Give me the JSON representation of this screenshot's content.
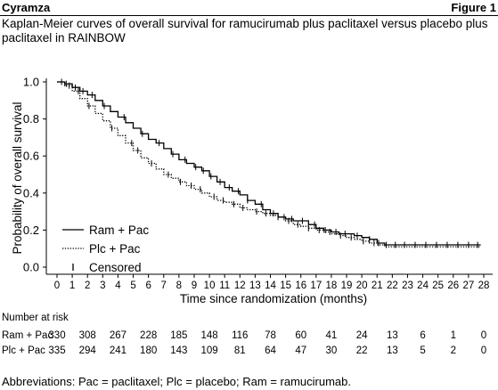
{
  "header": {
    "drug": "Cyramza",
    "figure": "Figure 1",
    "title": "Kaplan-Meier curves of overall survival for ramucirumab plus paclitaxel versus placebo plus paclitaxel in RAINBOW"
  },
  "chart_data": {
    "type": "line",
    "xlabel": "Time since randomization (months)",
    "ylabel": "Probability of overall survival",
    "xlim": [
      0,
      28
    ],
    "ylim": [
      0,
      1.0
    ],
    "x_ticks": [
      0,
      1,
      2,
      3,
      4,
      5,
      6,
      7,
      8,
      9,
      10,
      11,
      12,
      13,
      14,
      15,
      16,
      17,
      18,
      19,
      20,
      21,
      22,
      23,
      24,
      25,
      26,
      27,
      28
    ],
    "y_ticks": [
      "0.0",
      "0.2",
      "0.4",
      "0.6",
      "0.8",
      "1.0"
    ],
    "legend": [
      {
        "label": "Ram + Pac",
        "style": "solid"
      },
      {
        "label": "Plc + Pac",
        "style": "dotted"
      },
      {
        "label": "Censored",
        "style": "tick"
      }
    ],
    "legend_position": "bottom-left",
    "series": [
      {
        "name": "Ram + Pac",
        "style": "solid",
        "x": [
          0,
          0.5,
          1,
          1.5,
          2,
          2.5,
          3,
          3.5,
          4,
          4.5,
          5,
          5.5,
          6,
          6.5,
          7,
          7.5,
          8,
          8.5,
          9,
          9.5,
          10,
          10.5,
          11,
          11.5,
          12,
          12.5,
          13,
          13.5,
          14,
          14.5,
          15,
          15.5,
          16,
          16.5,
          17,
          17.5,
          18,
          18.5,
          19,
          19.5,
          20,
          20.5,
          21,
          21.5,
          22,
          23,
          24,
          25,
          26,
          27,
          27.3,
          27.8
        ],
        "y": [
          1.0,
          0.99,
          0.97,
          0.95,
          0.93,
          0.9,
          0.87,
          0.84,
          0.81,
          0.78,
          0.75,
          0.72,
          0.69,
          0.67,
          0.64,
          0.61,
          0.58,
          0.56,
          0.54,
          0.52,
          0.49,
          0.46,
          0.43,
          0.41,
          0.39,
          0.36,
          0.34,
          0.31,
          0.29,
          0.27,
          0.26,
          0.25,
          0.25,
          0.23,
          0.21,
          0.2,
          0.19,
          0.18,
          0.18,
          0.17,
          0.16,
          0.15,
          0.13,
          0.12,
          0.12,
          0.12,
          0.12,
          0.12,
          0.12,
          0.12,
          0.12,
          0.12
        ]
      },
      {
        "name": "Plc + Pac",
        "style": "dotted",
        "x": [
          0,
          0.5,
          1,
          1.5,
          2,
          2.5,
          3,
          3.5,
          4,
          4.5,
          5,
          5.5,
          6,
          6.5,
          7,
          7.5,
          8,
          8.5,
          9,
          9.5,
          10,
          10.5,
          11,
          11.5,
          12,
          12.5,
          13,
          13.5,
          14,
          14.5,
          15,
          15.5,
          16,
          16.5,
          17,
          17.5,
          18,
          18.5,
          19,
          19.5,
          20,
          20.5,
          21,
          21.5,
          22,
          23,
          24,
          25,
          26,
          27,
          27.8
        ],
        "y": [
          1.0,
          0.98,
          0.95,
          0.91,
          0.87,
          0.83,
          0.79,
          0.75,
          0.71,
          0.67,
          0.63,
          0.59,
          0.56,
          0.53,
          0.5,
          0.48,
          0.46,
          0.44,
          0.42,
          0.4,
          0.38,
          0.36,
          0.35,
          0.34,
          0.32,
          0.31,
          0.3,
          0.29,
          0.28,
          0.27,
          0.25,
          0.23,
          0.22,
          0.21,
          0.2,
          0.19,
          0.18,
          0.17,
          0.16,
          0.15,
          0.14,
          0.13,
          0.12,
          0.11,
          0.11,
          0.11,
          0.11,
          0.11,
          0.11,
          0.11,
          0.11
        ]
      }
    ],
    "censor_ticks": [
      {
        "series": "Ram + Pac",
        "x": [
          0.3,
          0.6,
          1.2,
          1.7,
          2.3,
          3.1,
          4.4,
          5.6,
          6.7,
          7.6,
          8.4,
          9.1,
          9.6,
          10.1,
          10.7,
          11.3,
          11.9,
          12.5,
          13.4,
          14.2,
          14.9,
          15.4,
          16.1,
          16.9,
          17.6,
          18.3,
          18.9,
          19.7,
          20.5,
          21.1,
          21.6,
          22.2,
          22.8,
          23.5,
          24.2,
          24.9,
          25.6,
          26.3,
          27.0,
          27.6
        ]
      },
      {
        "series": "Plc + Pac",
        "x": [
          0.8,
          1.4,
          2.1,
          3.6,
          4.9,
          5.3,
          6.2,
          7.3,
          8.1,
          8.8,
          9.4,
          10.3,
          10.9,
          11.6,
          12.2,
          13.1,
          13.7,
          14.5,
          15.2,
          15.8,
          16.5,
          17.2,
          17.9,
          18.6,
          19.3,
          20.1,
          20.8
        ]
      }
    ]
  },
  "risk_table": {
    "header": "Number at risk",
    "rows": [
      {
        "label": "Ram + Pac",
        "values": [
          "330",
          "308",
          "267",
          "228",
          "185",
          "148",
          "116",
          "78",
          "60",
          "41",
          "24",
          "13",
          "6",
          "1",
          "0"
        ]
      },
      {
        "label": "Plc + Pac",
        "values": [
          "335",
          "294",
          "241",
          "180",
          "143",
          "109",
          "81",
          "64",
          "47",
          "30",
          "22",
          "13",
          "5",
          "2",
          "0"
        ]
      }
    ],
    "months": [
      0,
      2,
      4,
      6,
      8,
      10,
      12,
      14,
      16,
      18,
      20,
      22,
      24,
      26,
      28
    ]
  },
  "footnote": "Abbreviations: Pac = paclitaxel; Plc = placebo; Ram = ramucirumab."
}
